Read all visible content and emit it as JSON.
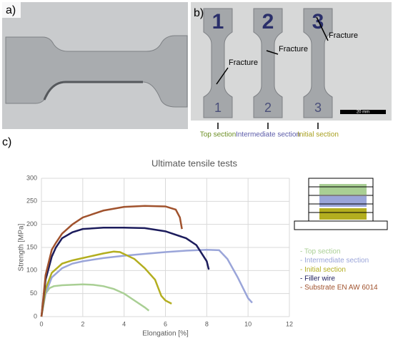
{
  "panel_a": {
    "label": "a)"
  },
  "panel_b": {
    "label": "b)",
    "scale_bar": "20 mm",
    "specimens": [
      {
        "number": "1",
        "annotation": "Fracture",
        "section": "Top section",
        "color": "#6b8e23"
      },
      {
        "number": "2",
        "annotation": "Fracture",
        "section": "Intermediate section",
        "color": "#5a5aa8"
      },
      {
        "number": "3",
        "annotation": "Fracture",
        "section": "Initial section",
        "color": "#a8a020"
      }
    ]
  },
  "panel_c": {
    "label": "c)"
  },
  "chart_data": {
    "type": "line",
    "title": "Ultimate tensile tests",
    "x_label": "Elongation [%]",
    "y_label": "Strength [MPa]",
    "xlim": [
      0,
      12
    ],
    "xticks": [
      0,
      2,
      4,
      6,
      8,
      10,
      12
    ],
    "ylim": [
      0,
      300
    ],
    "yticks": [
      0,
      50,
      100,
      150,
      200,
      250,
      300
    ],
    "grid": true,
    "series": [
      {
        "name": "- Top section",
        "color": "#a9cf94",
        "x": [
          0,
          0.1,
          0.2,
          0.4,
          0.6,
          1,
          1.5,
          2,
          2.5,
          3,
          3.5,
          4,
          4.5,
          5,
          5.2
        ],
        "values": [
          0,
          30,
          50,
          62,
          66,
          68,
          69,
          70,
          69,
          66,
          60,
          50,
          35,
          20,
          13
        ]
      },
      {
        "name": "- Intermediate section",
        "color": "#9aa5d9",
        "x": [
          0,
          0.2,
          0.5,
          1,
          1.5,
          2,
          3,
          4,
          5,
          6,
          7,
          8,
          8.6,
          9,
          9.5,
          10,
          10.2
        ],
        "values": [
          0,
          50,
          85,
          105,
          115,
          120,
          127,
          132,
          136,
          140,
          143,
          145,
          144,
          125,
          85,
          40,
          30
        ]
      },
      {
        "name": "- Initial section",
        "color": "#b3ae1f",
        "x": [
          0,
          0.2,
          0.5,
          1,
          1.5,
          2,
          2.5,
          3,
          3.5,
          3.8,
          4.5,
          5,
          5.5,
          5.8,
          6,
          6.3
        ],
        "values": [
          0,
          60,
          95,
          115,
          122,
          127,
          132,
          137,
          141,
          140,
          125,
          105,
          80,
          45,
          35,
          28
        ]
      },
      {
        "name": "- Filler wire",
        "color": "#1c1c5c",
        "x": [
          0,
          0.2,
          0.5,
          0.7,
          1,
          1.5,
          2,
          3,
          4,
          5,
          6,
          7,
          7.5,
          8,
          8.1
        ],
        "values": [
          0,
          80,
          130,
          150,
          170,
          183,
          190,
          193,
          193,
          192,
          185,
          170,
          155,
          120,
          102
        ]
      },
      {
        "name": "- Substrate EN AW 6014",
        "color": "#a0522d",
        "x": [
          0,
          0.2,
          0.5,
          0.7,
          1,
          1.5,
          2,
          3,
          4,
          5,
          6,
          6.5,
          6.7,
          6.8
        ],
        "values": [
          0,
          90,
          145,
          160,
          180,
          200,
          215,
          230,
          238,
          240,
          239,
          232,
          215,
          190
        ]
      }
    ]
  }
}
